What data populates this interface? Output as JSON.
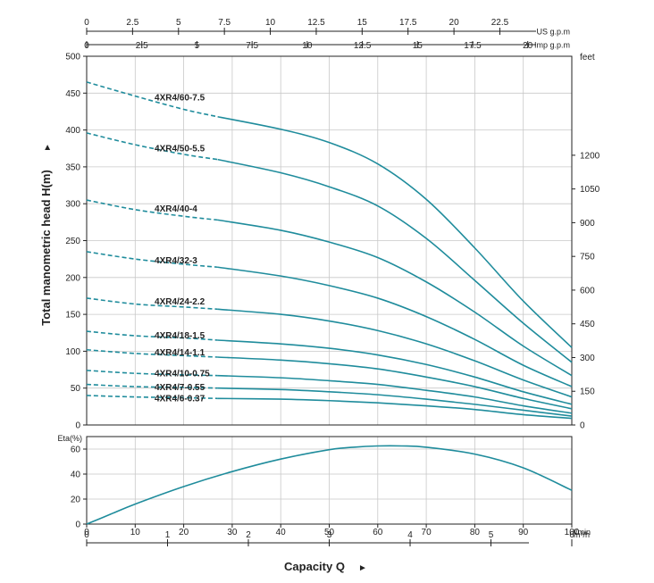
{
  "chart_data": [
    {
      "type": "line",
      "name": "head-curves",
      "ylabel": "Total manometric head H(m)",
      "ylim": [
        0,
        500
      ],
      "yticks": [
        0,
        50,
        100,
        150,
        200,
        250,
        300,
        350,
        400,
        450,
        500
      ],
      "xlim": [
        0,
        100
      ],
      "xticks": [
        0,
        10,
        20,
        30,
        40,
        50,
        60,
        70,
        80,
        90,
        100
      ],
      "grid": true,
      "right_axis": {
        "unit": "feet",
        "ticks": [
          "0",
          "150",
          "300",
          "450",
          "600",
          "750",
          "900",
          "1050",
          "1200"
        ],
        "tick_values_m": [
          0,
          45.72,
          91.44,
          137.16,
          182.88,
          228.6,
          274.32,
          320.04,
          365.76
        ]
      },
      "top_axes": [
        {
          "unit": "US g.p.m",
          "ticks": [
            "0",
            "2.5",
            "5",
            "7.5",
            "10",
            "12.5",
            "15",
            "17.5",
            "20",
            "22.5"
          ],
          "values_lmin": [
            0,
            9.46,
            18.93,
            28.39,
            37.85,
            47.32,
            56.78,
            66.24,
            75.71,
            85.17
          ]
        },
        {
          "unit": "Imp g.p.m",
          "ticks": [
            "0",
            "2.5",
            "5",
            "7.5",
            "10",
            "12.5",
            "15",
            "17.5",
            "20"
          ],
          "values_lmin": [
            0,
            11.37,
            22.73,
            34.1,
            45.46,
            56.83,
            68.19,
            79.56,
            90.92
          ]
        }
      ],
      "dashed_until_x": 27,
      "x": [
        0,
        10,
        20,
        27,
        40,
        50,
        60,
        70,
        80,
        90,
        100
      ],
      "series": [
        {
          "name": "4XR4/60-7.5",
          "label_pos": [
            14,
            445
          ],
          "values": [
            465,
            446,
            428,
            418,
            401,
            383,
            354,
            306,
            240,
            168,
            105
          ]
        },
        {
          "name": "4XR4/50-5.5",
          "label_pos": [
            14,
            376
          ],
          "values": [
            396,
            380,
            367,
            360,
            342,
            323,
            297,
            253,
            196,
            138,
            85
          ]
        },
        {
          "name": "4XR4/40-4",
          "label_pos": [
            14,
            294
          ],
          "values": [
            305,
            292,
            283,
            278,
            264,
            248,
            227,
            194,
            153,
            107,
            67
          ]
        },
        {
          "name": "4XR4/32-3",
          "label_pos": [
            14,
            224
          ],
          "values": [
            235,
            225,
            218,
            214,
            202,
            189,
            172,
            147,
            116,
            81,
            52
          ]
        },
        {
          "name": "4XR4/24-2.2",
          "label_pos": [
            14,
            168
          ],
          "values": [
            172,
            164,
            160,
            157,
            150,
            141,
            128,
            110,
            87,
            61,
            38
          ]
        },
        {
          "name": "4XR4/18-1.5",
          "label_pos": [
            14,
            122
          ],
          "values": [
            127,
            121,
            118,
            115,
            110,
            104,
            95,
            82,
            65,
            45,
            28
          ]
        },
        {
          "name": "4XR4/14-1.1",
          "label_pos": [
            14,
            99
          ],
          "values": [
            102,
            97,
            94,
            92,
            88,
            83,
            76,
            65,
            52,
            36,
            22
          ]
        },
        {
          "name": "4XR4/10-0.75",
          "label_pos": [
            14,
            71
          ],
          "values": [
            74,
            70,
            68,
            67,
            64,
            60,
            55,
            47,
            38,
            26,
            16
          ]
        },
        {
          "name": "4XR4/7-0.55",
          "label_pos": [
            14,
            52
          ],
          "values": [
            55,
            52,
            51,
            50,
            48,
            45,
            41,
            35,
            28,
            20,
            12
          ]
        },
        {
          "name": "4XR4/6-0.37",
          "label_pos": [
            14,
            37
          ],
          "values": [
            40,
            38,
            37,
            36,
            35,
            33,
            30,
            26,
            21,
            14,
            9
          ]
        }
      ]
    },
    {
      "type": "line",
      "name": "efficiency-curve",
      "ylabel": "Eta(%)",
      "ylim": [
        0,
        70
      ],
      "yticks": [
        0,
        20,
        40,
        60
      ],
      "xlim": [
        0,
        100
      ],
      "xlabel": "Capacity Q",
      "x_unit": "l/min",
      "xticks": [
        "0",
        "10",
        "20",
        "30",
        "40",
        "50",
        "60",
        "70",
        "80",
        "90",
        "100"
      ],
      "x2_unit": "m³/h",
      "x2_ticks": [
        "0",
        "1",
        "2",
        "3",
        "4",
        "5",
        "6"
      ],
      "x2_values_lmin": [
        0,
        16.67,
        33.33,
        50,
        66.67,
        83.33,
        100
      ],
      "grid": true,
      "x": [
        0,
        5,
        10,
        20,
        30,
        40,
        50,
        55,
        60,
        65,
        70,
        80,
        90,
        100
      ],
      "values": [
        0,
        8,
        16,
        30,
        42,
        52,
        59.5,
        61.5,
        62.5,
        62.5,
        61.5,
        56,
        45,
        27
      ]
    }
  ],
  "colors": {
    "curve": "#1f8c9c",
    "grid": "#c8c8c8",
    "axis": "#222222"
  },
  "arrow_glyph": "►"
}
